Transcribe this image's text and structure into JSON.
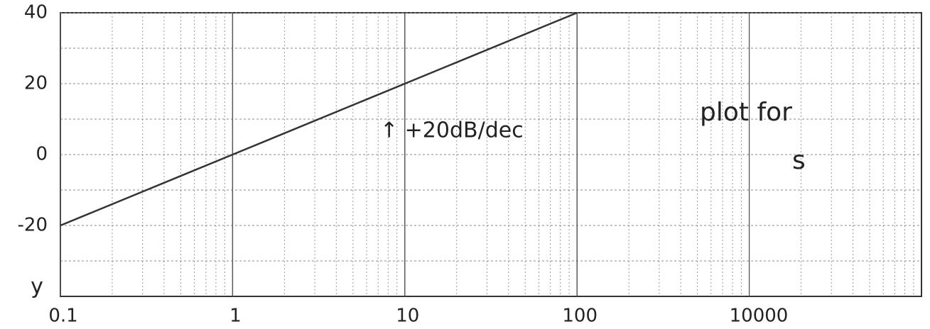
{
  "chart_data": {
    "type": "line",
    "xscale": "log",
    "grid": true,
    "x": [
      0.1,
      1,
      10,
      100
    ],
    "series": [
      {
        "color": "#333333",
        "values": [
          -20,
          0,
          20,
          40
        ]
      }
    ],
    "xlim": [
      0.1,
      10000
    ],
    "ylim": [
      -40,
      40
    ],
    "xticks": [
      0.1,
      1,
      10,
      100
    ],
    "yticks": [
      40,
      20,
      0,
      -20
    ],
    "annotations": [
      "↑ +20dB/dec",
      "plot for",
      "s",
      "y",
      "10000"
    ]
  }
}
